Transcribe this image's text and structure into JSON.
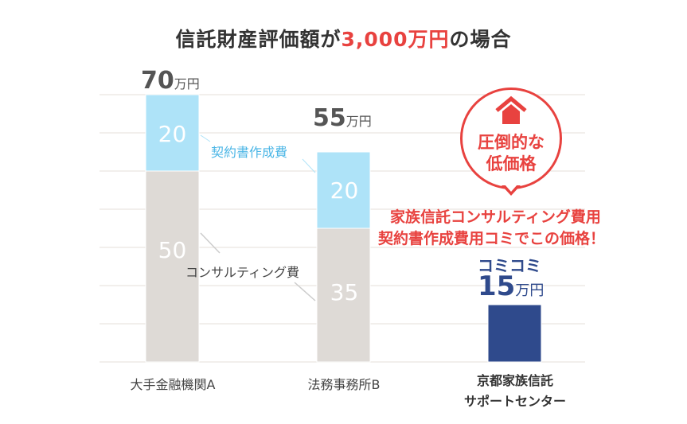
{
  "title": {
    "prefix": "信託財産評価額が",
    "highlight": "3,000万円",
    "suffix": "の場合"
  },
  "unit": "万円",
  "callout": {
    "icon": "house-icon",
    "line1": "圧倒的な",
    "line2": "低価格",
    "note1": "家族信託コンサルティング費用",
    "note2": "契約書作成費用コミでこの価格！",
    "komi": "コミコミ"
  },
  "colors": {
    "contract": "#aee3f8",
    "consulting": "#dedad6",
    "ours": "#2f4a8c",
    "accent": "#e8423f",
    "grid": "#eeeae6"
  },
  "chart_data": {
    "type": "bar",
    "stacked": true,
    "categories": [
      "大手金融機関A",
      "法務事務所B",
      "京都家族信託\nサポートセンター"
    ],
    "category_lines": [
      [
        "大手金融機関A"
      ],
      [
        "法務事務所B"
      ],
      [
        "京都家族信託",
        "サポートセンター"
      ]
    ],
    "series": [
      {
        "name": "コンサルティング費",
        "values": [
          50,
          35,
          null
        ]
      },
      {
        "name": "契約書作成費",
        "values": [
          20,
          20,
          null
        ]
      },
      {
        "name": "",
        "values": [
          null,
          null,
          15
        ]
      }
    ],
    "totals": [
      70,
      55,
      15
    ],
    "ylim": [
      0,
      70
    ],
    "grid": true,
    "legend": "inline"
  }
}
